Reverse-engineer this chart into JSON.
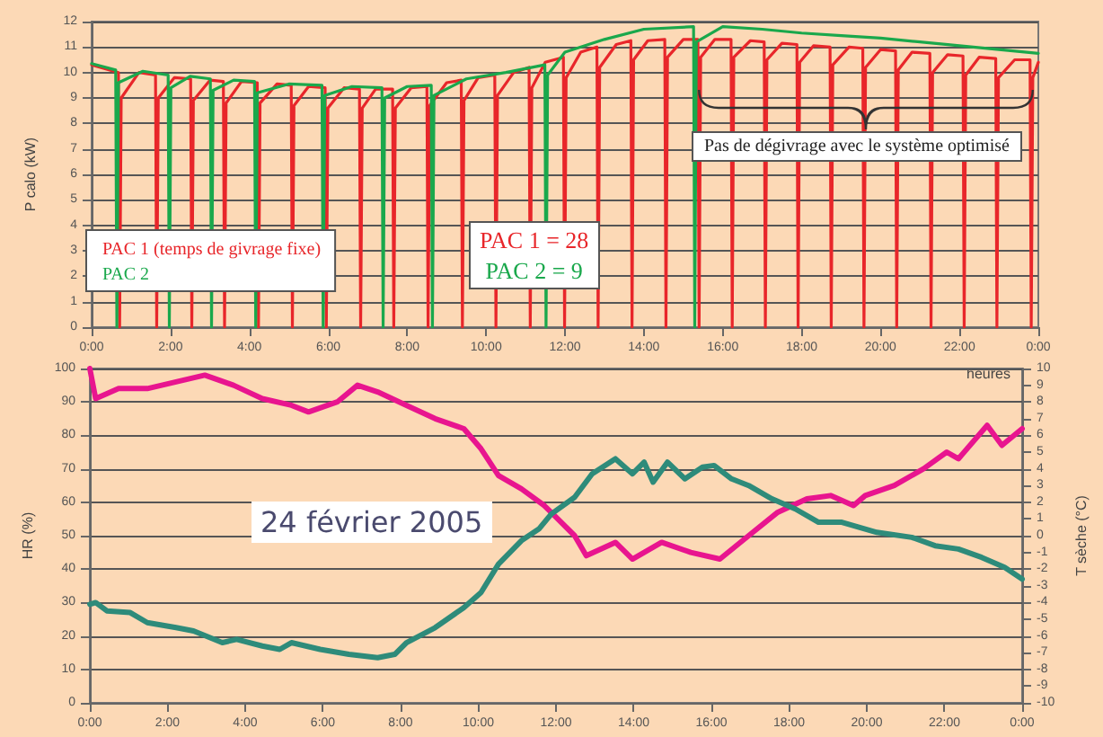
{
  "chart_data": [
    {
      "type": "line",
      "xlabel": "heures",
      "ylabel": "P calo (kW)",
      "xlim": [
        0,
        24
      ],
      "xticks": [
        {
          "value": 0,
          "label": "0:00"
        },
        {
          "value": 2,
          "label": "2:00"
        },
        {
          "value": 4,
          "label": "4:00"
        },
        {
          "value": 6,
          "label": "6:00"
        },
        {
          "value": 8,
          "label": "8:00"
        },
        {
          "value": 10,
          "label": "10:00"
        },
        {
          "value": 12,
          "label": "12:00"
        },
        {
          "value": 14,
          "label": "14:00"
        },
        {
          "value": 16,
          "label": "16:00"
        },
        {
          "value": 18,
          "label": "18:00"
        },
        {
          "value": 20,
          "label": "20:00"
        },
        {
          "value": 22,
          "label": "22:00"
        },
        {
          "value": 24,
          "label": "0:00"
        }
      ],
      "ylim": [
        0,
        12
      ],
      "yticks": [
        0,
        1,
        2,
        3,
        4,
        5,
        6,
        7,
        8,
        9,
        10,
        11,
        12
      ],
      "grid": "y",
      "legend": "bottom left",
      "marker": "none",
      "line_style": "solid",
      "annotations": [
        "PAC 1 = 28",
        "PAC 2 = 9",
        "Pas de dégivrage avec le système optimisé"
      ],
      "series": [
        {
          "name": "PAC 1 (temps de givrage fixe)",
          "color": "#e8262a",
          "x": [
            0,
            0.68,
            0.71,
            0.75,
            1.2,
            1.62,
            1.65,
            1.69,
            2.1,
            2.51,
            2.54,
            2.58,
            3.0,
            3.34,
            3.37,
            3.41,
            3.8,
            4.2,
            4.23,
            4.27,
            4.7,
            5.06,
            5.09,
            5.13,
            5.5,
            5.92,
            5.95,
            5.99,
            6.4,
            6.79,
            6.82,
            6.86,
            7.2,
            7.63,
            7.66,
            7.7,
            8.1,
            8.5,
            8.53,
            8.57,
            9.0,
            9.37,
            9.4,
            9.44,
            9.8,
            10.22,
            10.25,
            10.29,
            10.7,
            11.09,
            11.12,
            11.16,
            11.5,
            11.96,
            11.99,
            12.03,
            12.4,
            12.81,
            12.84,
            12.88,
            13.3,
            13.67,
            13.7,
            13.74,
            14.1,
            14.53,
            14.56,
            14.6,
            15.0,
            15.37,
            15.4,
            15.44,
            15.8,
            16.21,
            16.24,
            16.28,
            16.7,
            17.05,
            17.08,
            17.12,
            17.5,
            17.88,
            17.91,
            17.95,
            18.3,
            18.72,
            18.75,
            18.79,
            19.2,
            19.55,
            19.58,
            19.62,
            20.0,
            20.38,
            20.41,
            20.45,
            20.8,
            21.25,
            21.28,
            21.32,
            21.7,
            22.09,
            22.12,
            22.16,
            22.5,
            22.92,
            22.95,
            22.99,
            23.4,
            23.79,
            23.82,
            23.86,
            24
          ],
          "values": [
            10.3,
            10.0,
            0,
            9.0,
            10.0,
            9.9,
            0,
            9.0,
            9.8,
            9.75,
            0,
            8.9,
            9.7,
            9.65,
            0,
            8.8,
            9.65,
            9.6,
            0,
            8.8,
            9.55,
            9.5,
            0,
            8.7,
            9.45,
            9.4,
            0,
            8.6,
            9.4,
            9.35,
            0,
            8.6,
            9.35,
            9.35,
            0,
            8.6,
            9.4,
            9.45,
            0,
            8.7,
            9.6,
            9.7,
            0,
            8.9,
            9.8,
            9.9,
            0,
            9.1,
            10.0,
            10.2,
            0,
            9.4,
            10.4,
            10.6,
            0,
            9.8,
            10.8,
            11.0,
            0,
            10.2,
            11.1,
            11.25,
            0,
            10.5,
            11.25,
            11.3,
            0,
            10.6,
            11.3,
            11.3,
            0,
            10.6,
            11.3,
            11.3,
            0,
            10.6,
            11.25,
            11.2,
            0,
            10.5,
            11.15,
            11.1,
            0,
            10.4,
            11.05,
            11.0,
            0,
            10.3,
            11.0,
            10.95,
            0,
            10.2,
            10.9,
            10.85,
            0,
            10.1,
            10.8,
            10.75,
            0,
            10.0,
            10.7,
            10.65,
            0,
            9.9,
            10.6,
            10.55,
            0,
            9.8,
            10.5,
            10.5,
            0,
            9.8,
            10.4
          ]
        },
        {
          "name": "PAC 2",
          "color": "#1aa84c",
          "x": [
            0,
            0.61,
            0.64,
            0.68,
            1.3,
            1.94,
            1.97,
            2.01,
            2.5,
            3.01,
            3.04,
            3.08,
            3.6,
            4.13,
            4.16,
            4.2,
            5.0,
            5.84,
            5.87,
            5.91,
            6.6,
            7.36,
            7.39,
            7.43,
            8.0,
            8.61,
            8.64,
            8.68,
            9.5,
            10.5,
            11.49,
            11.52,
            11.56,
            12,
            13,
            14,
            15.26,
            15.29,
            15.33,
            16,
            17,
            18,
            19,
            20,
            21,
            22,
            23,
            24
          ],
          "values": [
            10.35,
            10.1,
            0,
            9.6,
            10.05,
            9.9,
            0,
            9.4,
            9.85,
            9.75,
            0,
            9.3,
            9.7,
            9.65,
            0,
            9.2,
            9.55,
            9.5,
            0,
            9.1,
            9.45,
            9.4,
            0,
            9.0,
            9.45,
            9.5,
            0,
            9.1,
            9.75,
            10.0,
            10.3,
            0,
            9.9,
            10.8,
            11.3,
            11.7,
            11.8,
            0,
            11.2,
            11.8,
            11.7,
            11.55,
            11.45,
            11.35,
            11.2,
            11.05,
            10.9,
            10.75
          ]
        }
      ]
    },
    {
      "type": "line",
      "ylabel": "HR (%)",
      "y2label": "T sèche (°C)",
      "xlim": [
        0,
        24
      ],
      "xticks": [
        {
          "value": 0,
          "label": "0:00"
        },
        {
          "value": 2,
          "label": "2:00"
        },
        {
          "value": 4,
          "label": "4:00"
        },
        {
          "value": 6,
          "label": "6:00"
        },
        {
          "value": 8,
          "label": "8:00"
        },
        {
          "value": 10,
          "label": "10:00"
        },
        {
          "value": 12,
          "label": "12:00"
        },
        {
          "value": 14,
          "label": "14:00"
        },
        {
          "value": 16,
          "label": "16:00"
        },
        {
          "value": 18,
          "label": "18:00"
        },
        {
          "value": 20,
          "label": "20:00"
        },
        {
          "value": 22,
          "label": "22:00"
        },
        {
          "value": 24,
          "label": "0:00"
        }
      ],
      "ylim": [
        0,
        100
      ],
      "yticks": [
        0,
        10,
        20,
        30,
        40,
        50,
        60,
        70,
        80,
        90,
        100
      ],
      "y2lim": [
        -10,
        10
      ],
      "y2ticks": [
        -10,
        -9,
        -8,
        -7,
        -6,
        -5,
        -4,
        -3,
        -2,
        -1,
        0,
        1,
        2,
        3,
        4,
        5,
        6,
        7,
        8,
        9,
        10
      ],
      "grid": "y",
      "marker": "none",
      "line_style": "solid",
      "annotations": [
        "24 février 2005"
      ],
      "series": [
        {
          "color": "#e8158f",
          "x": [
            0,
            0.15,
            0.74,
            1.48,
            2.22,
            2.96,
            3.7,
            4.44,
            5.19,
            5.63,
            6.37,
            6.89,
            7.41,
            8.15,
            8.89,
            9.63,
            10.07,
            10.52,
            11.11,
            11.7,
            11.96,
            12.48,
            12.78,
            13.53,
            13.97,
            14.72,
            15.47,
            16.22,
            16.96,
            17.71,
            18.46,
            19.07,
            19.66,
            19.96,
            20.71,
            21.46,
            22.06,
            22.36,
            23.1,
            23.48,
            24
          ],
          "values": [
            100,
            91,
            94,
            94,
            96,
            98,
            95,
            91,
            89,
            87,
            90,
            95,
            93,
            89,
            85,
            82,
            76,
            68,
            64,
            59,
            56,
            50,
            44,
            48,
            43,
            48,
            45,
            43,
            50,
            57,
            61,
            62,
            59,
            62,
            65,
            70,
            75,
            73,
            83,
            77,
            82
          ]
        },
        {
          "color": "#2e8b7a",
          "axis": "y2",
          "x": [
            0,
            0.15,
            0.44,
            1.04,
            1.48,
            2.22,
            2.67,
            3.41,
            3.78,
            4.44,
            4.89,
            5.19,
            5.93,
            6.67,
            7.41,
            7.85,
            8.15,
            8.89,
            9.63,
            10.07,
            10.52,
            11.11,
            11.56,
            11.88,
            12.48,
            12.93,
            13.53,
            13.97,
            14.27,
            14.5,
            14.87,
            15.32,
            15.77,
            16.07,
            16.52,
            16.96,
            17.56,
            18.16,
            18.76,
            19.36,
            20.26,
            21.16,
            21.76,
            22.36,
            22.96,
            23.55,
            24
          ],
          "values": [
            -4.1,
            -4.0,
            -4.5,
            -4.6,
            -5.2,
            -5.5,
            -5.7,
            -6.4,
            -6.2,
            -6.6,
            -6.8,
            -6.4,
            -6.8,
            -7.1,
            -7.3,
            -7.1,
            -6.4,
            -5.5,
            -4.3,
            -3.4,
            -1.7,
            -0.3,
            0.4,
            1.3,
            2.3,
            3.7,
            4.6,
            3.7,
            4.4,
            3.2,
            4.4,
            3.4,
            4.1,
            4.2,
            3.4,
            3.0,
            2.2,
            1.6,
            0.8,
            0.8,
            0.2,
            -0.1,
            -0.6,
            -0.8,
            -1.3,
            -1.9,
            -2.6
          ]
        }
      ]
    }
  ]
}
